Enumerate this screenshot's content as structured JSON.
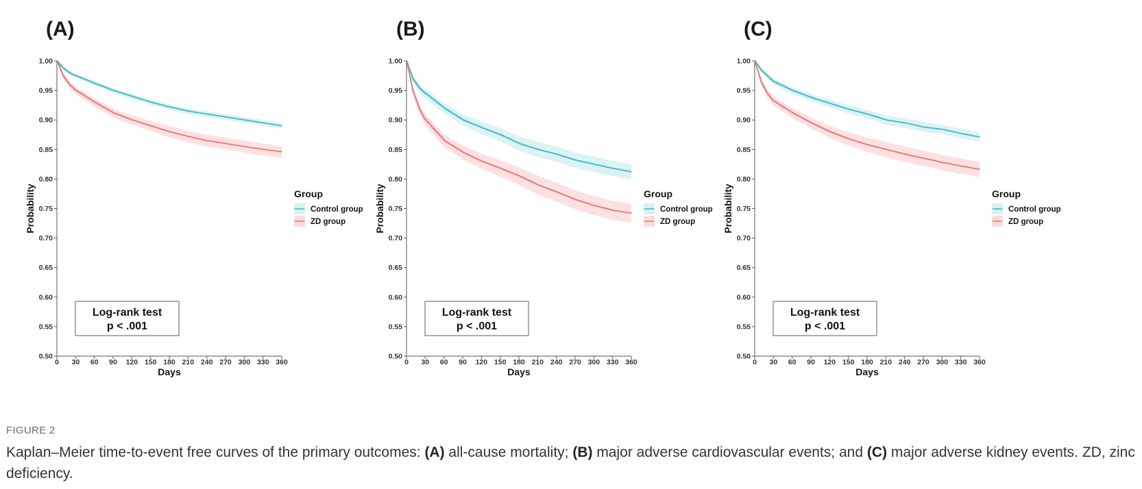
{
  "colors": {
    "control": "#3dbcc5",
    "zd": "#e8787a",
    "control_band": "#d7f0f3",
    "zd_band": "#fbdcdd",
    "axis": "#555555"
  },
  "caption": {
    "label": "FIGURE 2",
    "parts": [
      {
        "text": "Kaplan–Meier time-to-event free curves of the primary outcomes: ",
        "bold": false
      },
      {
        "text": "(A)",
        "bold": true
      },
      {
        "text": " all-cause mortality; ",
        "bold": false
      },
      {
        "text": "(B)",
        "bold": true
      },
      {
        "text": " major adverse cardiovascular events; and ",
        "bold": false
      },
      {
        "text": "(C)",
        "bold": true
      },
      {
        "text": " major adverse kidney events. ZD, zinc deficiency.",
        "bold": false
      }
    ]
  },
  "chart_data": [
    {
      "panel": "(A)",
      "type": "line",
      "xlabel": "Days",
      "ylabel": "Probability",
      "xlim": [
        0,
        360
      ],
      "ylim": [
        0.5,
        1.0
      ],
      "xticks": [
        "0",
        "30",
        "60",
        "90",
        "120",
        "150",
        "180",
        "210",
        "240",
        "270",
        "300",
        "330",
        "360"
      ],
      "yticks": [
        "0.50",
        "0.55",
        "0.60",
        "0.65",
        "0.70",
        "0.75",
        "0.80",
        "0.85",
        "0.90",
        "0.95",
        "1.00"
      ],
      "legend": {
        "title": "Group",
        "position": "right"
      },
      "series": [
        {
          "name": "Control group",
          "color": "control",
          "x": [
            0,
            10,
            20,
            30,
            60,
            90,
            120,
            150,
            180,
            210,
            240,
            270,
            300,
            330,
            360
          ],
          "y": [
            1.0,
            0.988,
            0.98,
            0.975,
            0.962,
            0.95,
            0.94,
            0.93,
            0.922,
            0.915,
            0.91,
            0.905,
            0.9,
            0.895,
            0.89
          ],
          "ci": 0.005
        },
        {
          "name": "ZD group",
          "color": "zd",
          "x": [
            0,
            10,
            20,
            30,
            60,
            90,
            120,
            150,
            180,
            210,
            240,
            270,
            300,
            330,
            360
          ],
          "y": [
            1.0,
            0.975,
            0.96,
            0.95,
            0.93,
            0.912,
            0.9,
            0.89,
            0.88,
            0.872,
            0.865,
            0.86,
            0.855,
            0.85,
            0.846
          ],
          "ci": 0.01
        }
      ],
      "annotation": [
        "Log-rank test",
        "p < .001"
      ],
      "grid": false
    },
    {
      "panel": "(B)",
      "type": "line",
      "xlabel": "Days",
      "ylabel": "Probability",
      "xlim": [
        0,
        360
      ],
      "ylim": [
        0.5,
        1.0
      ],
      "xticks": [
        "0",
        "30",
        "60",
        "90",
        "120",
        "150",
        "180",
        "210",
        "240",
        "270",
        "300",
        "330",
        "360"
      ],
      "yticks": [
        "0.50",
        "0.55",
        "0.60",
        "0.65",
        "0.70",
        "0.75",
        "0.80",
        "0.85",
        "0.90",
        "0.95",
        "1.00"
      ],
      "legend": {
        "title": "Group",
        "position": "right"
      },
      "series": [
        {
          "name": "Control group",
          "color": "control",
          "x": [
            0,
            10,
            20,
            30,
            60,
            90,
            120,
            150,
            180,
            210,
            240,
            270,
            300,
            330,
            360
          ],
          "y": [
            1.0,
            0.97,
            0.955,
            0.945,
            0.92,
            0.9,
            0.887,
            0.875,
            0.86,
            0.85,
            0.842,
            0.832,
            0.825,
            0.818,
            0.812
          ],
          "ci": 0.013
        },
        {
          "name": "ZD group",
          "color": "zd",
          "x": [
            0,
            10,
            20,
            30,
            60,
            90,
            120,
            150,
            180,
            210,
            240,
            270,
            300,
            330,
            360
          ],
          "y": [
            1.0,
            0.95,
            0.92,
            0.9,
            0.865,
            0.845,
            0.83,
            0.818,
            0.805,
            0.79,
            0.778,
            0.765,
            0.755,
            0.747,
            0.742
          ],
          "ci": 0.016
        }
      ],
      "annotation": [
        "Log-rank test",
        "p < .001"
      ],
      "grid": false
    },
    {
      "panel": "(C)",
      "type": "line",
      "xlabel": "Days",
      "ylabel": "Probability",
      "xlim": [
        0,
        360
      ],
      "ylim": [
        0.5,
        1.0
      ],
      "xticks": [
        "0",
        "30",
        "60",
        "90",
        "120",
        "150",
        "180",
        "210",
        "240",
        "270",
        "300",
        "330",
        "360"
      ],
      "yticks": [
        "0.50",
        "0.55",
        "0.60",
        "0.65",
        "0.70",
        "0.75",
        "0.80",
        "0.85",
        "0.90",
        "0.95",
        "1.00"
      ],
      "legend": {
        "title": "Group",
        "position": "right"
      },
      "series": [
        {
          "name": "Control group",
          "color": "control",
          "x": [
            0,
            10,
            20,
            30,
            60,
            90,
            120,
            150,
            180,
            210,
            240,
            270,
            300,
            330,
            360
          ],
          "y": [
            1.0,
            0.985,
            0.975,
            0.965,
            0.95,
            0.938,
            0.928,
            0.918,
            0.91,
            0.9,
            0.895,
            0.888,
            0.884,
            0.877,
            0.871
          ],
          "ci": 0.008
        },
        {
          "name": "ZD group",
          "color": "zd",
          "x": [
            0,
            10,
            20,
            30,
            60,
            90,
            120,
            150,
            180,
            210,
            240,
            270,
            300,
            330,
            360
          ],
          "y": [
            1.0,
            0.965,
            0.945,
            0.932,
            0.912,
            0.895,
            0.88,
            0.868,
            0.858,
            0.85,
            0.842,
            0.835,
            0.828,
            0.822,
            0.816
          ],
          "ci": 0.013
        }
      ],
      "annotation": [
        "Log-rank test",
        "p < .001"
      ],
      "grid": false
    }
  ]
}
